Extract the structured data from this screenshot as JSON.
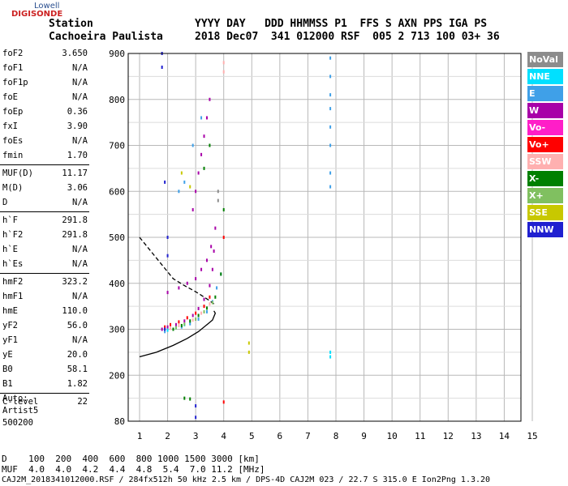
{
  "logo": {
    "top": "Lowell",
    "main": "DIGISONDE"
  },
  "header": {
    "line1": "Station                YYYY DAY   DDD HHMMSS P1  FFS S AXN PPS IGA PS",
    "line2": "Cachoeira Paulista     2018 Dec07  341 012000 RSF  005 2 713 100 03+ 36"
  },
  "params": [
    {
      "name": "foF2",
      "value": "3.650"
    },
    {
      "name": "foF1",
      "value": "N/A"
    },
    {
      "name": "foF1p",
      "value": "N/A"
    },
    {
      "name": "foE",
      "value": "N/A"
    },
    {
      "name": "foEp",
      "value": "0.36"
    },
    {
      "name": "fxI",
      "value": "3.90"
    },
    {
      "name": "foEs",
      "value": "N/A"
    },
    {
      "name": "fmin",
      "value": "1.70"
    },
    {
      "name": "MUF(D)",
      "value": "11.17"
    },
    {
      "name": "M(D)",
      "value": "3.06"
    },
    {
      "name": "D",
      "value": "N/A"
    },
    {
      "name": "h`F",
      "value": "291.8"
    },
    {
      "name": "h`F2",
      "value": "291.8"
    },
    {
      "name": "h`E",
      "value": "N/A"
    },
    {
      "name": "h`Es",
      "value": "N/A"
    },
    {
      "name": "hmF2",
      "value": "323.2"
    },
    {
      "name": "hmF1",
      "value": "N/A"
    },
    {
      "name": "hmE",
      "value": "110.0"
    },
    {
      "name": "yF2",
      "value": "56.0"
    },
    {
      "name": "yF1",
      "value": "N/A"
    },
    {
      "name": "yE",
      "value": "20.0"
    },
    {
      "name": "B0",
      "value": "58.1"
    },
    {
      "name": "B1",
      "value": "1.82"
    },
    {
      "name": "C-level",
      "value": "22"
    }
  ],
  "auto": {
    "line1": "Auto:",
    "line2": "Artist5",
    "line3": "500200"
  },
  "legend": [
    {
      "label": "NoVal",
      "color": "#8c8c8c"
    },
    {
      "label": "NNE",
      "color": "#00e0ff"
    },
    {
      "label": "E",
      "color": "#3fa0e8"
    },
    {
      "label": "W",
      "color": "#a800a8"
    },
    {
      "label": "Vo-",
      "color": "#ff1ec8"
    },
    {
      "label": "Vo+",
      "color": "#ff0000"
    },
    {
      "label": "SSW",
      "color": "#ffb0b0"
    },
    {
      "label": "X-",
      "color": "#008000"
    },
    {
      "label": "X+",
      "color": "#80c060"
    },
    {
      "label": "SSE",
      "color": "#c8c800"
    },
    {
      "label": "NNW",
      "color": "#2020d0"
    }
  ],
  "footer": {
    "line1": "D    100  200  400  600  800 1000 1500 3000 [km]",
    "line2": "MUF  4.0  4.0  4.2  4.4  4.8  5.4  7.0 11.2 [MHz]",
    "line3": "CAJ2M_2018341012000.RSF / 284fx512h 50 kHz 2.5 km / DPS-4D CAJ2M 023 / 22.7 S 315.0 E Ion2Png 1.3.20"
  },
  "chart_data": {
    "type": "scatter",
    "x_ticks": [
      "1",
      "2",
      "3",
      "4",
      "5",
      "6",
      "7",
      "8",
      "9",
      "10",
      "11",
      "12",
      "13",
      "14",
      "15"
    ],
    "y_ticks": [
      "80",
      "200",
      "300",
      "400",
      "500",
      "600",
      "700",
      "800",
      "900"
    ],
    "xlim": [
      1,
      15
    ],
    "ylim": [
      80,
      900
    ],
    "y_tick_values": [
      80,
      200,
      300,
      400,
      500,
      600,
      700,
      800,
      900
    ],
    "grid": true,
    "legend_placement": "right",
    "series": [
      {
        "name": "W",
        "color": "#a800a8",
        "x": [
          1.8,
          2.0,
          2.3,
          2.6,
          2.9,
          3.1,
          3.3,
          3.5,
          3.6,
          3.65,
          2.0,
          2.4,
          2.7,
          3.0,
          3.2,
          3.4,
          3.55,
          3.7,
          2.9,
          3.0,
          3.1,
          3.2,
          3.3,
          3.4,
          3.5
        ],
        "y": [
          300,
          305,
          310,
          318,
          330,
          345,
          365,
          395,
          430,
          470,
          380,
          390,
          400,
          410,
          430,
          450,
          480,
          520,
          560,
          600,
          640,
          680,
          720,
          760,
          800
        ]
      },
      {
        "name": "E",
        "color": "#3fa0e8",
        "x": [
          1.9,
          2.2,
          2.5,
          2.8,
          3.1,
          3.4,
          3.6,
          3.75,
          3.9,
          7.8,
          7.8,
          7.8,
          7.8,
          7.8,
          7.8,
          7.8,
          7.8,
          2.4,
          2.6,
          2.9,
          3.2
        ],
        "y": [
          295,
          300,
          305,
          312,
          322,
          338,
          360,
          390,
          420,
          610,
          640,
          700,
          740,
          780,
          810,
          850,
          890,
          600,
          620,
          700,
          760
        ]
      },
      {
        "name": "X-",
        "color": "#008000",
        "x": [
          2.2,
          2.5,
          2.8,
          3.1,
          3.4,
          3.7,
          3.9,
          4.0,
          2.6,
          2.8,
          3.3,
          3.5
        ],
        "y": [
          300,
          308,
          318,
          330,
          346,
          370,
          420,
          560,
          140,
          138,
          650,
          700
        ]
      },
      {
        "name": "Vo+",
        "color": "#ff0000",
        "x": [
          1.9,
          2.1,
          2.4,
          2.7,
          3.0,
          3.3,
          3.5,
          4.0,
          4.0
        ],
        "y": [
          305,
          310,
          316,
          325,
          335,
          350,
          370,
          500,
          130
        ]
      },
      {
        "name": "NNW",
        "color": "#2020d0",
        "x": [
          1.8,
          1.8,
          1.9,
          2.0,
          3.0,
          3.0,
          2.0,
          1.9
        ],
        "y": [
          900,
          870,
          620,
          500,
          90,
          120,
          460,
          300
        ]
      },
      {
        "name": "SSW",
        "color": "#ffb0b0",
        "x": [
          2.1,
          2.4,
          2.9,
          3.2,
          3.5,
          4.0,
          4.0
        ],
        "y": [
          302,
          308,
          320,
          335,
          355,
          880,
          860
        ]
      },
      {
        "name": "SSE",
        "color": "#c8c800",
        "x": [
          4.9,
          4.9,
          2.5,
          2.8
        ],
        "y": [
          270,
          250,
          640,
          610
        ]
      },
      {
        "name": "NNE",
        "color": "#00e0ff",
        "x": [
          2.0,
          2.3,
          2.6,
          7.8,
          7.8
        ],
        "y": [
          298,
          303,
          310,
          240,
          250
        ]
      },
      {
        "name": "X+",
        "color": "#80c060",
        "x": [
          2.3,
          2.6,
          3.0,
          3.3,
          3.6
        ],
        "y": [
          303,
          311,
          322,
          338,
          358
        ]
      },
      {
        "name": "NoVal",
        "color": "#8c8c8c",
        "x": [
          3.8,
          3.8
        ],
        "y": [
          600,
          580
        ]
      }
    ],
    "lines": [
      {
        "style": "solid",
        "color": "#000000",
        "x": [
          1.0,
          1.6,
          2.2,
          2.7,
          3.1,
          3.4,
          3.6,
          3.7,
          3.65
        ],
        "y": [
          240,
          250,
          265,
          280,
          295,
          310,
          320,
          335,
          340
        ]
      },
      {
        "style": "dashed",
        "color": "#000000",
        "x": [
          1.0,
          1.4,
          1.8,
          2.2,
          2.6,
          2.9,
          3.1,
          3.3,
          3.5,
          3.65
        ],
        "y": [
          500,
          470,
          440,
          410,
          395,
          385,
          378,
          370,
          362,
          355
        ]
      }
    ]
  }
}
